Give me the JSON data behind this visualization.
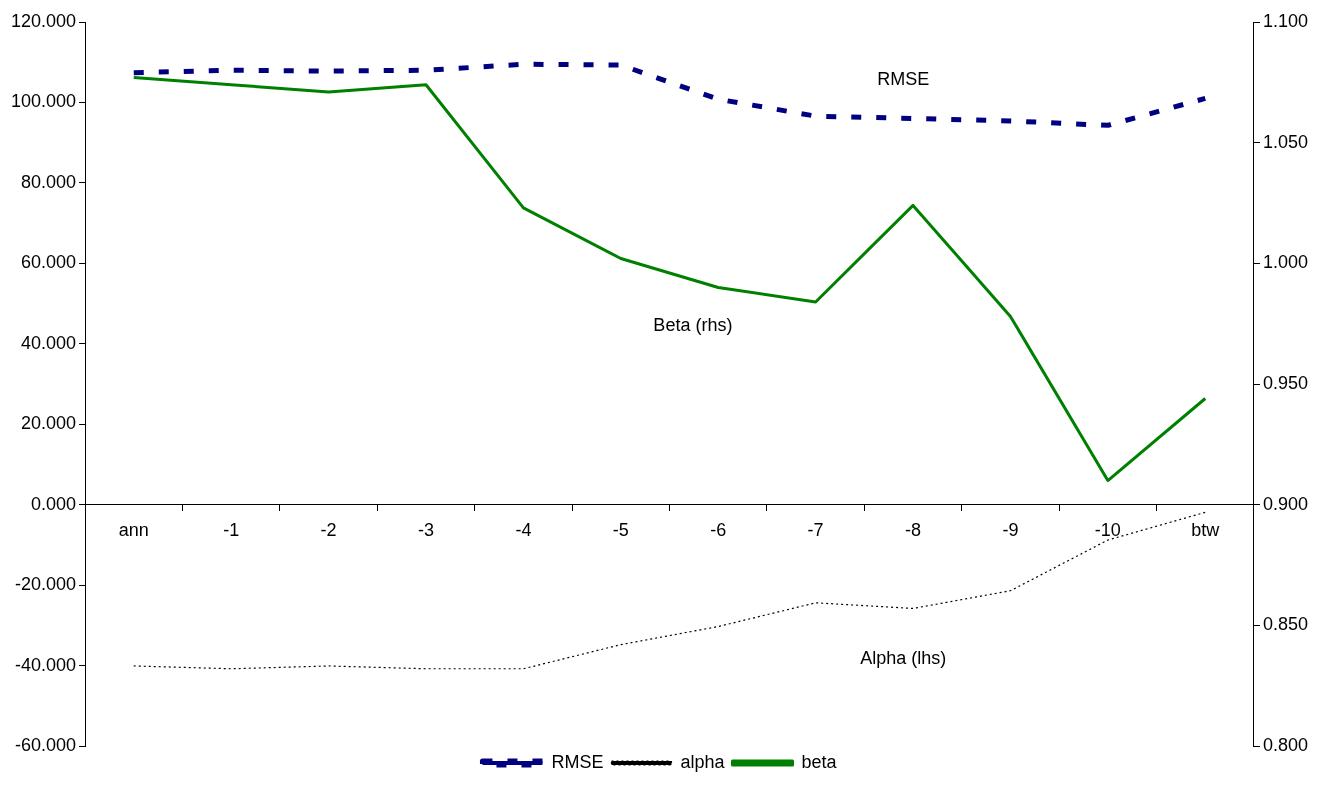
{
  "chart_data": {
    "type": "line",
    "categories": [
      "ann",
      "-1",
      "-2",
      "-3",
      "-4",
      "-5",
      "-6",
      "-7",
      "-8",
      "-9",
      "-10",
      "btw"
    ],
    "series": [
      {
        "name": "RMSE",
        "color": "#000080",
        "line_style": "dashed",
        "values": [
          107.4,
          108.0,
          107.8,
          108.0,
          109.5,
          109.3,
          100.8,
          96.6,
          96.0,
          95.4,
          94.3,
          101.0
        ]
      },
      {
        "name": "alpha",
        "color": "#000000",
        "line_style": "dotted",
        "values": [
          -40.1,
          -40.8,
          -40.1,
          -40.8,
          -40.8,
          -34.8,
          -30.3,
          -24.4,
          -25.8,
          -21.4,
          -8.8,
          -1.9
        ]
      },
      {
        "name": "beta",
        "color": "#008000",
        "line_style": "solid",
        "axis": "y2",
        "values": [
          1.077,
          1.074,
          1.071,
          1.074,
          1.023,
          1.002,
          0.99,
          0.984,
          1.024,
          0.978,
          0.91,
          0.944
        ]
      }
    ],
    "ylim": [
      -60,
      120
    ],
    "yticks": [
      {
        "value": -60,
        "label": "-60.000"
      },
      {
        "value": -40,
        "label": "-40.000"
      },
      {
        "value": -20,
        "label": "-20.000"
      },
      {
        "value": 0,
        "label": "0.000"
      },
      {
        "value": 20,
        "label": "20.000"
      },
      {
        "value": 40,
        "label": "40.000"
      },
      {
        "value": 60,
        "label": "60.000"
      },
      {
        "value": 80,
        "label": "80.000"
      },
      {
        "value": 100,
        "label": "100.000"
      },
      {
        "value": 120,
        "label": "120.000"
      }
    ],
    "y2lim": [
      0.8,
      1.1
    ],
    "y2ticks": [
      {
        "value": 0.8,
        "label": "0.800"
      },
      {
        "value": 0.85,
        "label": "0.850"
      },
      {
        "value": 0.9,
        "label": "0.900"
      },
      {
        "value": 0.95,
        "label": "0.950"
      },
      {
        "value": 1.0,
        "label": "1.000"
      },
      {
        "value": 1.05,
        "label": "1.050"
      },
      {
        "value": 1.1,
        "label": "1.100"
      }
    ],
    "annotations": [
      "RMSE",
      "Beta (rhs)",
      "Alpha (lhs)"
    ],
    "grid": false,
    "marker": "none",
    "legend": "bottom"
  }
}
